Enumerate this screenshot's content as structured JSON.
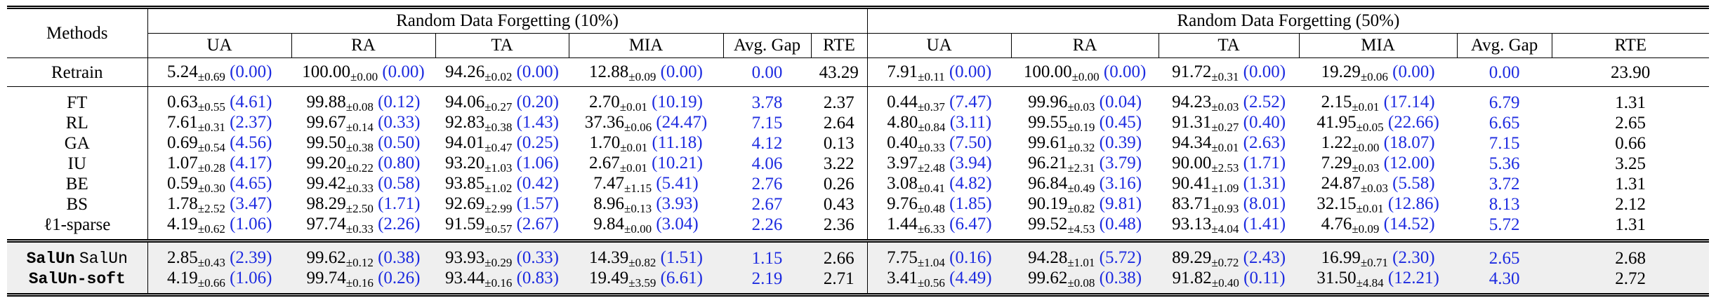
{
  "header": {
    "methods_label": "Methods",
    "group1": "Random Data Forgetting (10%)",
    "group2": "Random Data Forgetting (50%)",
    "metrics": [
      "UA",
      "RA",
      "TA",
      "MIA",
      "Avg. Gap",
      "RTE"
    ]
  },
  "retrain": {
    "method": "Retrain",
    "g10": {
      "UA": [
        "5.24",
        "±0.69",
        "(0.00)"
      ],
      "RA": [
        "100.00",
        "±0.00",
        "(0.00)"
      ],
      "TA": [
        "94.26",
        "±0.02",
        "(0.00)"
      ],
      "MIA": [
        "12.88",
        "±0.09",
        "(0.00)"
      ],
      "gap": "0.00",
      "rte": "43.29"
    },
    "g50": {
      "UA": [
        "7.91",
        "±0.11",
        "(0.00)"
      ],
      "RA": [
        "100.00",
        "±0.00",
        "(0.00)"
      ],
      "TA": [
        "91.72",
        "±0.31",
        "(0.00)"
      ],
      "MIA": [
        "19.29",
        "±0.06",
        "(0.00)"
      ],
      "gap": "0.00",
      "rte": "23.90"
    }
  },
  "baselines": [
    {
      "method": "FT",
      "g10": {
        "UA": [
          "0.63",
          "±0.55",
          "(4.61)"
        ],
        "RA": [
          "99.88",
          "±0.08",
          "(0.12)"
        ],
        "TA": [
          "94.06",
          "±0.27",
          "(0.20)"
        ],
        "MIA": [
          "2.70",
          "±0.01",
          "(10.19)"
        ],
        "gap": "3.78",
        "rte": "2.37"
      },
      "g50": {
        "UA": [
          "0.44",
          "±0.37",
          "(7.47)"
        ],
        "RA": [
          "99.96",
          "±0.03",
          "(0.04)"
        ],
        "TA": [
          "94.23",
          "±0.03",
          "(2.52)"
        ],
        "MIA": [
          "2.15",
          "±0.01",
          "(17.14)"
        ],
        "gap": "6.79",
        "rte": "1.31"
      }
    },
    {
      "method": "RL",
      "g10": {
        "UA": [
          "7.61",
          "±0.31",
          "(2.37)"
        ],
        "RA": [
          "99.67",
          "±0.14",
          "(0.33)"
        ],
        "TA": [
          "92.83",
          "±0.38",
          "(1.43)"
        ],
        "MIA": [
          "37.36",
          "±0.06",
          "(24.47)"
        ],
        "gap": "7.15",
        "rte": "2.64"
      },
      "g50": {
        "UA": [
          "4.80",
          "±0.84",
          "(3.11)"
        ],
        "RA": [
          "99.55",
          "±0.19",
          "(0.45)"
        ],
        "TA": [
          "91.31",
          "±0.27",
          "(0.40)"
        ],
        "MIA": [
          "41.95",
          "±0.05",
          "(22.66)"
        ],
        "gap": "6.65",
        "rte": "2.65"
      }
    },
    {
      "method": "GA",
      "g10": {
        "UA": [
          "0.69",
          "±0.54",
          "(4.56)"
        ],
        "RA": [
          "99.50",
          "±0.38",
          "(0.50)"
        ],
        "TA": [
          "94.01",
          "±0.47",
          "(0.25)"
        ],
        "MIA": [
          "1.70",
          "±0.01",
          "(11.18)"
        ],
        "gap": "4.12",
        "rte": "0.13"
      },
      "g50": {
        "UA": [
          "0.40",
          "±0.33",
          "(7.50)"
        ],
        "RA": [
          "99.61",
          "±0.32",
          "(0.39)"
        ],
        "TA": [
          "94.34",
          "±0.01",
          "(2.63)"
        ],
        "MIA": [
          "1.22",
          "±0.00",
          "(18.07)"
        ],
        "gap": "7.15",
        "rte": "0.66"
      }
    },
    {
      "method": "IU",
      "g10": {
        "UA": [
          "1.07",
          "±0.28",
          "(4.17)"
        ],
        "RA": [
          "99.20",
          "±0.22",
          "(0.80)"
        ],
        "TA": [
          "93.20",
          "±1.03",
          "(1.06)"
        ],
        "MIA": [
          "2.67",
          "±0.01",
          "(10.21)"
        ],
        "gap": "4.06",
        "rte": "3.22"
      },
      "g50": {
        "UA": [
          "3.97",
          "±2.48",
          "(3.94)"
        ],
        "RA": [
          "96.21",
          "±2.31",
          "(3.79)"
        ],
        "TA": [
          "90.00",
          "±2.53",
          "(1.71)"
        ],
        "MIA": [
          "7.29",
          "±0.03",
          "(12.00)"
        ],
        "gap": "5.36",
        "rte": "3.25"
      }
    },
    {
      "method": "BE",
      "g10": {
        "UA": [
          "0.59",
          "±0.30",
          "(4.65)"
        ],
        "RA": [
          "99.42",
          "±0.33",
          "(0.58)"
        ],
        "TA": [
          "93.85",
          "±1.02",
          "(0.42)"
        ],
        "MIA": [
          "7.47",
          "±1.15",
          "(5.41)"
        ],
        "gap": "2.76",
        "rte": "0.26"
      },
      "g50": {
        "UA": [
          "3.08",
          "±0.41",
          "(4.82)"
        ],
        "RA": [
          "96.84",
          "±0.49",
          "(3.16)"
        ],
        "TA": [
          "90.41",
          "±1.09",
          "(1.31)"
        ],
        "MIA": [
          "24.87",
          "±0.03",
          "(5.58)"
        ],
        "gap": "3.72",
        "rte": "1.31"
      }
    },
    {
      "method": "BS",
      "g10": {
        "UA": [
          "1.78",
          "±2.52",
          "(3.47)"
        ],
        "RA": [
          "98.29",
          "±2.50",
          "(1.71)"
        ],
        "TA": [
          "92.69",
          "±2.99",
          "(1.57)"
        ],
        "MIA": [
          "8.96",
          "±0.13",
          "(3.93)"
        ],
        "gap": "2.67",
        "rte": "0.43"
      },
      "g50": {
        "UA": [
          "9.76",
          "±0.48",
          "(1.85)"
        ],
        "RA": [
          "90.19",
          "±0.82",
          "(9.81)"
        ],
        "TA": [
          "83.71",
          "±0.93",
          "(8.01)"
        ],
        "MIA": [
          "32.15",
          "±0.01",
          "(12.86)"
        ],
        "gap": "8.13",
        "rte": "2.12"
      }
    },
    {
      "method": "ℓ1-sparse",
      "g10": {
        "UA": [
          "4.19",
          "±0.62",
          "(1.06)"
        ],
        "RA": [
          "97.74",
          "±0.33",
          "(2.26)"
        ],
        "TA": [
          "91.59",
          "±0.57",
          "(2.67)"
        ],
        "MIA": [
          "9.84",
          "±0.00",
          "(3.04)"
        ],
        "gap": "2.26",
        "rte": "2.36"
      },
      "g50": {
        "UA": [
          "1.44",
          "±6.33",
          "(6.47)"
        ],
        "RA": [
          "99.52",
          "±4.53",
          "(0.48)"
        ],
        "TA": [
          "93.13",
          "±4.04",
          "(1.41)"
        ],
        "MIA": [
          "4.76",
          "±0.09",
          "(14.52)"
        ],
        "gap": "5.72",
        "rte": "1.31"
      }
    }
  ],
  "salun": [
    {
      "method": "SalUn",
      "method_suffix": "SalUn",
      "g10": {
        "UA": [
          "2.85",
          "±0.43",
          "(2.39)"
        ],
        "RA": [
          "99.62",
          "±0.12",
          "(0.38)"
        ],
        "TA": [
          "93.93",
          "±0.29",
          "(0.33)"
        ],
        "MIA": [
          "14.39",
          "±0.82",
          "(1.51)"
        ],
        "gap": "1.15",
        "rte": "2.66"
      },
      "g50": {
        "UA": [
          "7.75",
          "±1.04",
          "(0.16)"
        ],
        "RA": [
          "94.28",
          "±1.01",
          "(5.72)"
        ],
        "TA": [
          "89.29",
          "±0.72",
          "(2.43)"
        ],
        "MIA": [
          "16.99",
          "±0.71",
          "(2.30)"
        ],
        "gap": "2.65",
        "rte": "2.68"
      }
    },
    {
      "method": "SalUn-soft",
      "method_suffix": "",
      "g10": {
        "UA": [
          "4.19",
          "±0.66",
          "(1.06)"
        ],
        "RA": [
          "99.74",
          "±0.16",
          "(0.26)"
        ],
        "TA": [
          "93.44",
          "±0.16",
          "(0.83)"
        ],
        "MIA": [
          "19.49",
          "±3.59",
          "(6.61)"
        ],
        "gap": "2.19",
        "rte": "2.71"
      },
      "g50": {
        "UA": [
          "3.41",
          "±0.56",
          "(4.49)"
        ],
        "RA": [
          "99.62",
          "±0.08",
          "(0.38)"
        ],
        "TA": [
          "91.82",
          "±0.40",
          "(0.11)"
        ],
        "MIA": [
          "31.50",
          "±4.84",
          "(12.21)"
        ],
        "gap": "4.30",
        "rte": "2.72"
      }
    }
  ]
}
